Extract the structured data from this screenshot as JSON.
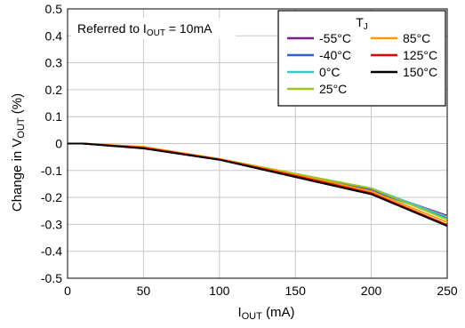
{
  "chart_data": {
    "type": "line",
    "xlabel": "I",
    "xlabel_sub": "OUT",
    "xlabel_unit": " (mA)",
    "ylabel": "Change in V",
    "ylabel_sub": "OUT",
    "ylabel_unit": " (%)",
    "annotation": "Referred to I",
    "annotation_sub": "OUT",
    "annotation_rest": " = 10mA",
    "legend_title": "T",
    "legend_title_sub": "J",
    "legend_placement": "top-right",
    "grid": true,
    "xlim": [
      0,
      250
    ],
    "ylim": [
      -0.5,
      0.5
    ],
    "xticks": [
      "0",
      "50",
      "100",
      "150",
      "200",
      "250"
    ],
    "yticks": [
      "0.5",
      "0.4",
      "0.3",
      "0.2",
      "0.1",
      "0",
      "-0.1",
      "-0.2",
      "-0.3",
      "-0.4",
      "-0.5"
    ],
    "x": [
      0,
      10,
      50,
      100,
      150,
      200,
      250
    ],
    "series": [
      {
        "name": "-55°C",
        "color": "#7a1f8a",
        "values": [
          0,
          0,
          -0.014,
          -0.058,
          -0.115,
          -0.17,
          -0.268
        ]
      },
      {
        "name": "-40°C",
        "color": "#2f5fd6",
        "values": [
          0,
          0,
          -0.015,
          -0.059,
          -0.117,
          -0.174,
          -0.274
        ]
      },
      {
        "name": "0°C",
        "color": "#3cc7c7",
        "values": [
          0,
          0,
          -0.015,
          -0.058,
          -0.113,
          -0.166,
          -0.272
        ]
      },
      {
        "name": "25°C",
        "color": "#9bc61f",
        "values": [
          0,
          0,
          -0.014,
          -0.057,
          -0.112,
          -0.166,
          -0.282
        ]
      },
      {
        "name": "85°C",
        "color": "#ff9900",
        "values": [
          0,
          0,
          -0.012,
          -0.057,
          -0.116,
          -0.177,
          -0.292
        ]
      },
      {
        "name": "125°C",
        "color": "#e00000",
        "values": [
          0,
          0,
          -0.016,
          -0.059,
          -0.12,
          -0.184,
          -0.302
        ]
      },
      {
        "name": "150°C",
        "color": "#000000",
        "values": [
          0,
          0,
          -0.018,
          -0.06,
          -0.124,
          -0.188,
          -0.306
        ]
      }
    ]
  }
}
